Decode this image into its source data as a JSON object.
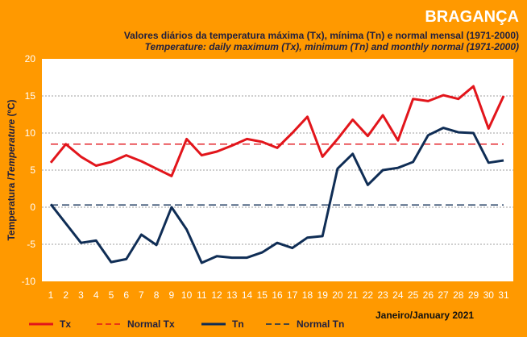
{
  "chart_data": {
    "type": "line",
    "title": "BRAGANÇA",
    "subtitle_pt": "Valores diários da temperatura máxima (Tx), mínima (Tn) e normal mensal  (1971-2000)",
    "subtitle_en": "Temperature: daily maximum  (Tx), minimum (Tn) and  monthly normal  (1971-2000)",
    "ylabel_pt": "Temperatura /",
    "ylabel_en": "Temperature",
    "ylabel_unit": " (ºC)",
    "month_label": "Janeiro/January 2021",
    "x": [
      1,
      2,
      3,
      4,
      5,
      6,
      7,
      8,
      9,
      10,
      11,
      12,
      13,
      14,
      15,
      16,
      17,
      18,
      19,
      20,
      21,
      22,
      23,
      24,
      25,
      26,
      27,
      28,
      29,
      30,
      31
    ],
    "ylim": [
      -10,
      20
    ],
    "yticks": [
      -10,
      -5,
      0,
      5,
      10,
      15,
      20
    ],
    "grid": true,
    "series": [
      {
        "name": "Tx",
        "color": "#E2151B",
        "dash": "solid",
        "values": [
          6.0,
          8.5,
          6.8,
          5.6,
          6.1,
          7.0,
          6.2,
          5.2,
          4.2,
          9.2,
          7.0,
          7.5,
          8.3,
          9.2,
          8.8,
          8.0,
          10.0,
          12.2,
          6.8,
          9.2,
          11.8,
          9.6,
          12.4,
          9.0,
          14.6,
          14.3,
          15.1,
          14.6,
          16.3,
          10.6,
          15.0
        ]
      },
      {
        "name": "Normal Tx",
        "color": "#E2151B",
        "dash": "dashed",
        "values": [
          8.5,
          8.5,
          8.5,
          8.5,
          8.5,
          8.5,
          8.5,
          8.5,
          8.5,
          8.5,
          8.5,
          8.5,
          8.5,
          8.5,
          8.5,
          8.5,
          8.5,
          8.5,
          8.5,
          8.5,
          8.5,
          8.5,
          8.5,
          8.5,
          8.5,
          8.5,
          8.5,
          8.5,
          8.5,
          8.5,
          8.5
        ]
      },
      {
        "name": "Tn",
        "color": "#0F2D55",
        "dash": "solid",
        "values": [
          0.4,
          -2.2,
          -4.8,
          -4.5,
          -7.4,
          -7.0,
          -3.7,
          -5.1,
          0.0,
          -3.0,
          -7.5,
          -6.6,
          -6.8,
          -6.8,
          -6.1,
          -4.8,
          -5.5,
          -4.1,
          -3.9,
          5.2,
          7.2,
          3.0,
          5.0,
          5.3,
          6.1,
          9.7,
          10.7,
          10.1,
          10.0,
          6.0,
          6.3
        ]
      },
      {
        "name": "Normal Tn",
        "color": "#0F2D55",
        "dash": "dashed",
        "values": [
          0.3,
          0.3,
          0.3,
          0.3,
          0.3,
          0.3,
          0.3,
          0.3,
          0.3,
          0.3,
          0.3,
          0.3,
          0.3,
          0.3,
          0.3,
          0.3,
          0.3,
          0.3,
          0.3,
          0.3,
          0.3,
          0.3,
          0.3,
          0.3,
          0.3,
          0.3,
          0.3,
          0.3,
          0.3,
          0.3,
          0.3
        ]
      }
    ],
    "legend_position": "bottom-left"
  }
}
